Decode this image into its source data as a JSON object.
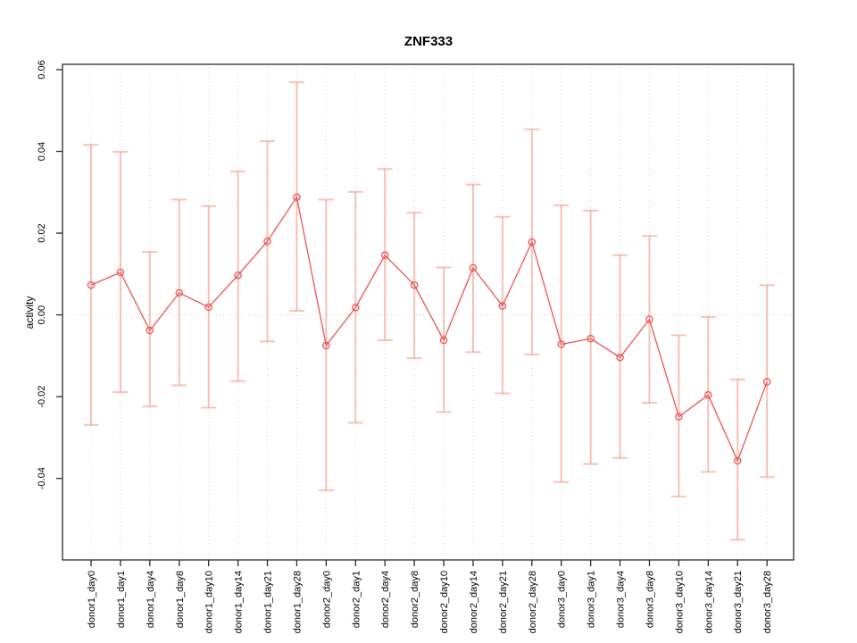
{
  "chart_data": {
    "type": "line",
    "title": "ZNF333",
    "xlabel": "",
    "ylabel": "activity",
    "ylim": [
      -0.06,
      0.061
    ],
    "yticks": [
      0.06,
      0.04,
      0.02,
      0.0,
      -0.02,
      -0.04
    ],
    "ytick_labels": [
      "0.06",
      "0.04",
      "0.02",
      "0.00",
      "-0.02",
      "-0.04"
    ],
    "grid": "vertical dotted gridline at every category; horizontal dotted line at y=0",
    "legend": "none",
    "categories": [
      "donor1_day0",
      "donor1_day1",
      "donor1_day4",
      "donor1_day8",
      "donor1_day10",
      "donor1_day14",
      "donor1_day21",
      "donor1_day28",
      "donor2_day0",
      "donor2_day1",
      "donor2_day4",
      "donor2_day8",
      "donor2_day10",
      "donor2_day14",
      "donor2_day21",
      "donor2_day28",
      "donor3_day0",
      "donor3_day1",
      "donor3_day4",
      "donor3_day8",
      "donor3_day10",
      "donor3_day14",
      "donor3_day21",
      "donor3_day28"
    ],
    "series": [
      {
        "name": "activity",
        "marker": "open-circle",
        "values": [
          0.0073,
          0.0104,
          -0.0038,
          0.0054,
          0.0019,
          0.0097,
          0.018,
          0.0288,
          -0.0075,
          0.0018,
          0.0146,
          0.0073,
          -0.0062,
          0.0115,
          0.0022,
          0.0178,
          -0.0072,
          -0.0058,
          -0.0104,
          -0.0011,
          -0.0249,
          -0.0196,
          -0.0357,
          -0.0164
        ],
        "ci_high": [
          0.0416,
          0.0399,
          0.0154,
          0.0282,
          0.0266,
          0.0351,
          0.0425,
          0.0569,
          0.0282,
          0.0301,
          0.0357,
          0.025,
          0.0116,
          0.0319,
          0.024,
          0.0454,
          0.0268,
          0.0255,
          0.0146,
          0.0193,
          -0.005,
          -0.0005,
          -0.0158,
          0.0073
        ],
        "ci_low": [
          -0.0269,
          -0.0189,
          -0.0224,
          -0.0172,
          -0.0227,
          -0.0162,
          -0.0065,
          0.001,
          -0.0429,
          -0.0264,
          -0.0062,
          -0.0106,
          -0.0238,
          -0.0091,
          -0.0192,
          -0.0097,
          -0.0409,
          -0.0365,
          -0.035,
          -0.0215,
          -0.0444,
          -0.0384,
          -0.055,
          -0.0397
        ]
      }
    ],
    "colors": {
      "line": "#ee5555",
      "marker": "#ee5555",
      "error_bar": "#f2927f",
      "error_bar_alpha": 0.55,
      "gridline": "#d4d4d4",
      "zero_line": "#c8c8c8",
      "frame": "#2b2b2b",
      "text": "#000000"
    }
  }
}
